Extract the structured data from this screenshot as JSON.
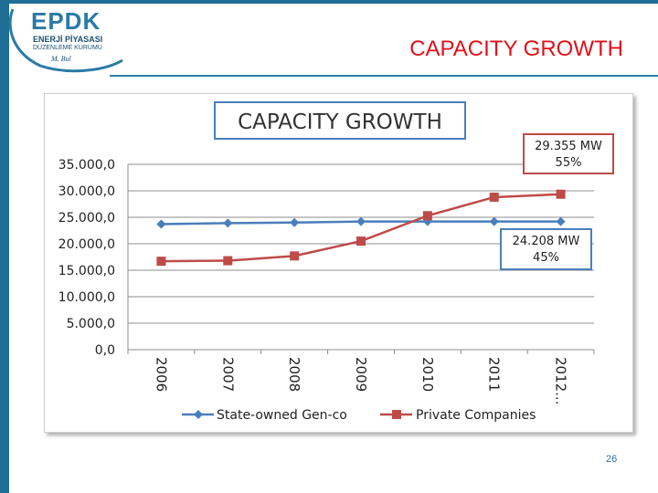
{
  "slide_title": "CAPACITY GROWTH",
  "page_number": "26",
  "logo": {
    "brand": "EPDK",
    "line1": "ENERJİ PİYASASI",
    "line2": "DÜZENLEME KURUMU",
    "signature": "M. Bul"
  },
  "colors": {
    "accent": "#1e6e96",
    "title": "#e0101a",
    "state": "#4a7ebb",
    "private": "#be4b48"
  },
  "chart_data": {
    "type": "line",
    "title": "CAPACITY GROWTH",
    "categories": [
      "2006",
      "2007",
      "2008",
      "2009",
      "2010",
      "2011",
      "2012..."
    ],
    "ylim": [
      0,
      35000
    ],
    "y_ticks": [
      "0,0",
      "5.000,0",
      "10.000,0",
      "15.000,0",
      "20.000,0",
      "25.000,0",
      "30.000,0",
      "35.000,0"
    ],
    "grid": true,
    "legend_position": "bottom",
    "series": [
      {
        "name": "State-owned Gen-co",
        "color": "#4a7ebb",
        "marker": "diamond",
        "values": [
          23700,
          23900,
          24000,
          24200,
          24200,
          24200,
          24208
        ]
      },
      {
        "name": "Private Companies",
        "color": "#be4b48",
        "marker": "square",
        "values": [
          16700,
          16800,
          17700,
          20500,
          25300,
          28800,
          29355
        ]
      }
    ],
    "annotations": [
      {
        "line1": "29.355 MW",
        "line2": "55%"
      },
      {
        "line1": "24.208 MW",
        "line2": "45%"
      }
    ]
  }
}
